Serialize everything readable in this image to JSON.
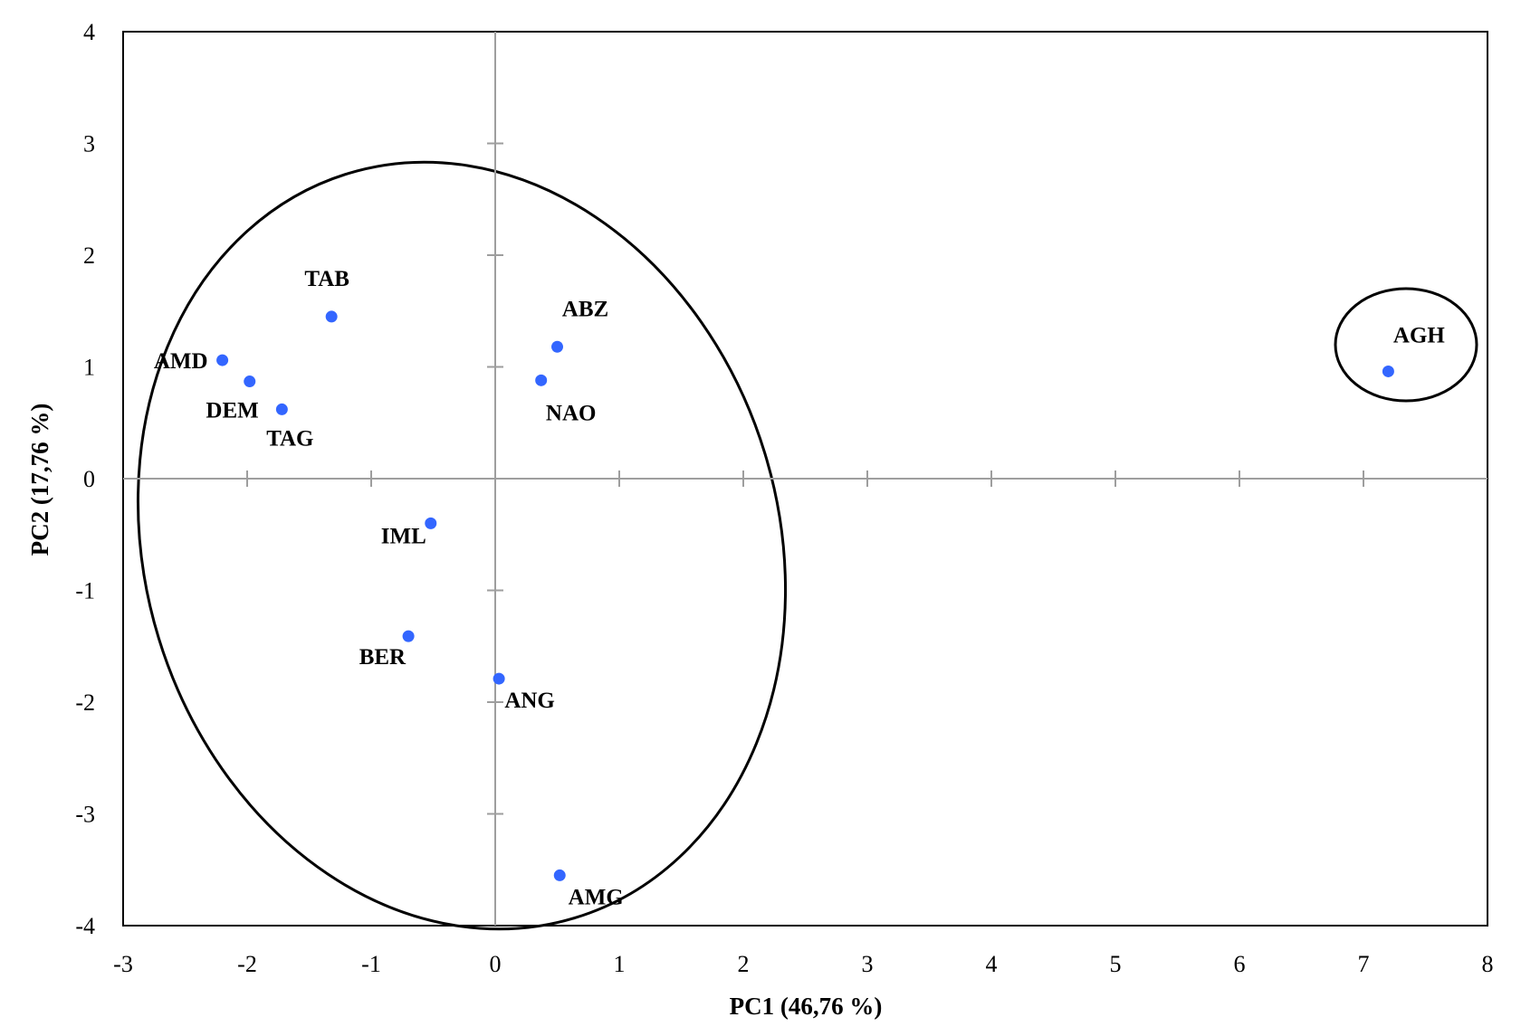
{
  "chart_data": {
    "type": "scatter",
    "xlabel": "PC1 (46,76 %)",
    "ylabel": "PC2 (17,76 %)",
    "xlim": [
      -3,
      8
    ],
    "ylim": [
      -4,
      4
    ],
    "xticks": [
      -3,
      -2,
      -1,
      0,
      1,
      2,
      3,
      4,
      5,
      6,
      7,
      8
    ],
    "yticks": [
      -4,
      -3,
      -2,
      -1,
      0,
      1,
      2,
      3,
      4
    ],
    "grid": false,
    "marker_color": "#3366ff",
    "points": [
      {
        "label": "TAB",
        "x": -1.32,
        "y": 1.45
      },
      {
        "label": "AMD",
        "x": -2.2,
        "y": 1.06
      },
      {
        "label": "DEM",
        "x": -1.98,
        "y": 0.87
      },
      {
        "label": "TAG",
        "x": -1.72,
        "y": 0.62
      },
      {
        "label": "ABZ",
        "x": 0.5,
        "y": 1.18
      },
      {
        "label": "NAO",
        "x": 0.37,
        "y": 0.88
      },
      {
        "label": "IML",
        "x": -0.52,
        "y": -0.4
      },
      {
        "label": "BER",
        "x": -0.7,
        "y": -1.41
      },
      {
        "label": "ANG",
        "x": 0.03,
        "y": -1.79
      },
      {
        "label": "AMG",
        "x": 0.52,
        "y": -3.55
      },
      {
        "label": "AGH",
        "x": 7.2,
        "y": 0.96
      }
    ],
    "groups": [
      {
        "members": [
          "TAB",
          "AMD",
          "DEM",
          "TAG",
          "ABZ",
          "NAO",
          "IML",
          "BER",
          "ANG",
          "AMG"
        ]
      },
      {
        "members": [
          "AGH"
        ]
      }
    ]
  }
}
